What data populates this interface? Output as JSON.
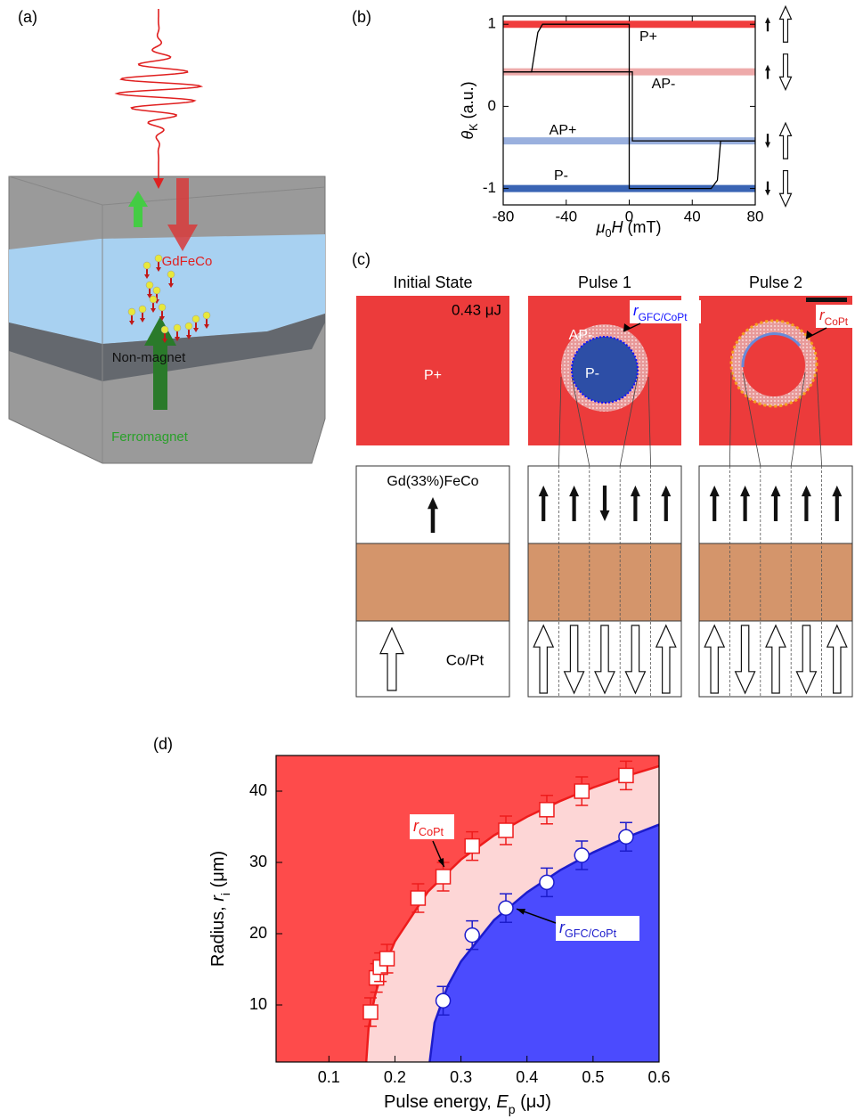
{
  "panel_labels": [
    "(a)",
    "(b)",
    "(c)",
    "(d)"
  ],
  "diagram_a": {
    "layers": [
      "GdFeCo",
      "Non-magnet",
      "Ferromagnet"
    ]
  },
  "chart_data": [
    {
      "type": "line",
      "xlabel": {
        "main": "μ",
        "sub": "0",
        "main2": "H",
        "post": " (mT)"
      },
      "ylabel": {
        "main": "θ",
        "sub": "K",
        "post": " (a.u.)"
      },
      "xlim": [
        -80,
        80
      ],
      "xticks": [
        -80,
        -40,
        0,
        40,
        80
      ],
      "ylim": [
        -1.2,
        1.1
      ],
      "yticks": [
        -1,
        0,
        1
      ],
      "levels": [
        {
          "name": "P+",
          "value": 1,
          "color": "#f03c3c"
        },
        {
          "name": "AP-",
          "value": 0.42,
          "color": "#eeaaaa"
        },
        {
          "name": "AP+",
          "value": -0.42,
          "color": "#9ab0de"
        },
        {
          "name": "P-",
          "value": -1,
          "color": "#3a64b4"
        }
      ],
      "series": [
        {
          "color": "#000000",
          "x": [
            -80,
            -62,
            -58,
            -55,
            0,
            0,
            52,
            56,
            58,
            80
          ],
          "values": [
            0.42,
            0.42,
            0.9,
            1,
            1,
            -1,
            -1,
            -0.9,
            -0.42,
            -0.42
          ]
        },
        {
          "color": "#000000",
          "x": [
            80,
            2,
            2,
            -80
          ],
          "values": [
            -0.42,
            -0.42,
            0.42,
            0.42
          ]
        }
      ]
    },
    {
      "type": "scatter",
      "xlabel": {
        "pre": "Pulse energy, ",
        "main": "E",
        "sub": "p",
        "post": " (μJ)"
      },
      "ylabel": {
        "pre": "Radius, ",
        "main": "r",
        "sub": "i",
        "post": " (μm)"
      },
      "xlim": [
        0.02,
        0.6
      ],
      "xticks": [
        0.1,
        0.2,
        0.3,
        0.4,
        0.5,
        0.6
      ],
      "ylim": [
        2,
        45
      ],
      "yticks": [
        10,
        20,
        30,
        40
      ],
      "background_color": "#fe4b4b",
      "fits": [
        {
          "color": "#ee1c1c",
          "fill": "#fdd6d6",
          "x": [
            0.155,
            0.16,
            0.17,
            0.18,
            0.2,
            0.25,
            0.3,
            0.35,
            0.4,
            0.45,
            0.5,
            0.55,
            0.6
          ],
          "values": [
            0,
            6.7,
            11.4,
            14.5,
            18.9,
            25.9,
            30.4,
            33.8,
            36.4,
            38.6,
            40.5,
            42.1,
            43.5
          ]
        },
        {
          "color": "#1c1ccc",
          "fill": "#4b4bfe",
          "x": [
            0.25,
            0.26,
            0.28,
            0.3,
            0.35,
            0.4,
            0.45,
            0.5,
            0.55,
            0.6
          ],
          "values": [
            0,
            7.5,
            12.7,
            16.1,
            21.9,
            25.8,
            28.9,
            31.4,
            33.5,
            35.3
          ]
        }
      ],
      "series": [
        {
          "marker": "square",
          "color": "#ee1c1c",
          "label": {
            "main": "r",
            "sub": "CoPt"
          },
          "x": [
            0.163,
            0.172,
            0.178,
            0.188,
            0.235,
            0.273,
            0.317,
            0.368,
            0.43,
            0.483,
            0.55
          ],
          "values": [
            9,
            13.8,
            15.3,
            16.5,
            25,
            28,
            32.3,
            34.5,
            37.4,
            40,
            42.2
          ],
          "errors": [
            2,
            2,
            2,
            2,
            2,
            2,
            2,
            2,
            2,
            2,
            2
          ]
        },
        {
          "marker": "circle",
          "color": "#1c1ccc",
          "label": {
            "main": "r",
            "sub": "GFC/CoPt"
          },
          "x": [
            0.273,
            0.317,
            0.368,
            0.43,
            0.483,
            0.55
          ],
          "values": [
            10.6,
            19.8,
            23.6,
            27.2,
            31,
            33.6
          ],
          "errors": [
            2,
            2,
            2,
            2,
            2,
            2
          ]
        }
      ]
    }
  ],
  "diagram_c": {
    "columns": [
      "Initial State",
      "Pulse 1",
      "Pulse 2"
    ],
    "energy": "0.43 μJ",
    "states": [
      "P+",
      "AP-",
      "P-"
    ],
    "r_labels": [
      {
        "main": "r",
        "sub": "GFC/CoPt"
      },
      {
        "main": "r",
        "sub": "CoPt"
      }
    ],
    "top_layer": "Gd(33%)FeCo",
    "bottom_layer": "Co/Pt"
  }
}
